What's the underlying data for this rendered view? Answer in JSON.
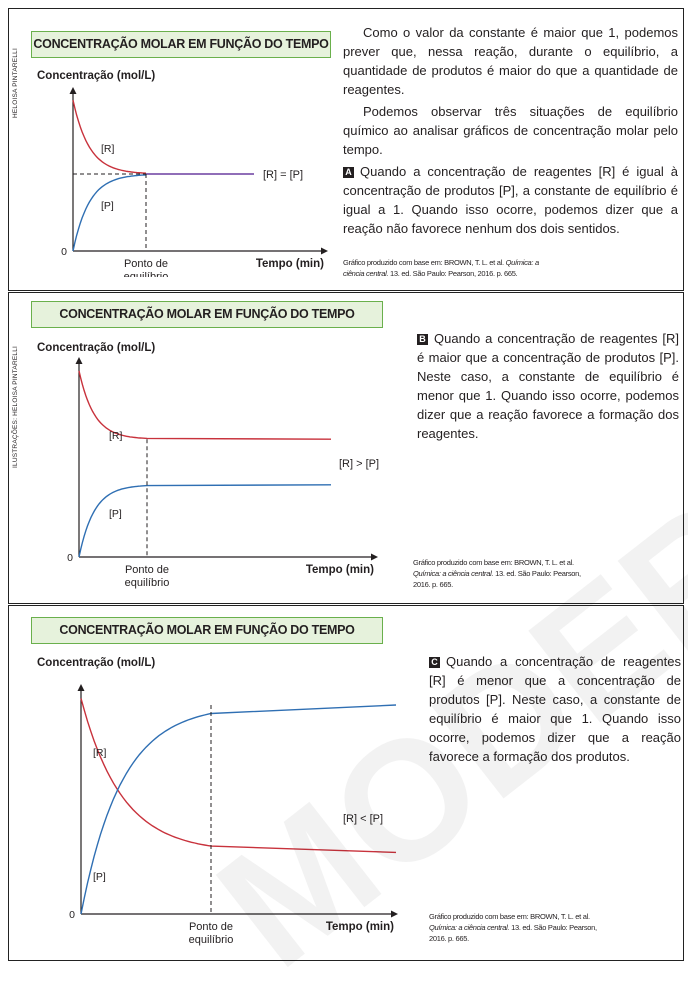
{
  "credits": {
    "first": "HELOISA PINTARELLI",
    "second": "ILUSTRAÇÕES: HELOISA PINTARELLI"
  },
  "watermark": "MODERNA",
  "chart_data": [
    {
      "type": "line",
      "title": "CONCENTRAÇÃO MOLAR EM FUNÇÃO DO TEMPO",
      "ylabel": "Concentração (mol/L)",
      "xlabel": "Tempo (min)",
      "origin_label": "0",
      "equilibrium_label": [
        "Ponto de",
        "equilíbrio"
      ],
      "annotation": "[R] = [P]",
      "series": [
        {
          "name": "[R]",
          "color": "#c8323c",
          "shape": "decay",
          "equilibrium_level": 0.5
        },
        {
          "name": "[P]",
          "color": "#2f6fb3",
          "shape": "growth",
          "equilibrium_level": 0.5
        }
      ]
    },
    {
      "type": "line",
      "title": "CONCENTRAÇÃO MOLAR EM FUNÇÃO DO TEMPO",
      "ylabel": "Concentração (mol/L)",
      "xlabel": "Tempo (min)",
      "origin_label": "0",
      "equilibrium_label": [
        "Ponto de",
        "equilíbrio"
      ],
      "annotation": "[R] > [P]",
      "series": [
        {
          "name": "[R]",
          "color": "#c8323c",
          "shape": "decay",
          "equilibrium_level": 0.62
        },
        {
          "name": "[P]",
          "color": "#2f6fb3",
          "shape": "growth",
          "equilibrium_level": 0.38
        }
      ]
    },
    {
      "type": "line",
      "title": "CONCENTRAÇÃO MOLAR EM FUNÇÃO DO TEMPO",
      "ylabel": "Concentração (mol/L)",
      "xlabel": "Tempo (min)",
      "origin_label": "0",
      "equilibrium_label": [
        "Ponto de",
        "equilíbrio"
      ],
      "annotation": "[R] < [P]",
      "series": [
        {
          "name": "[R]",
          "color": "#c8323c",
          "shape": "decay",
          "equilibrium_level": 0.28
        },
        {
          "name": "[P]",
          "color": "#2f6fb3",
          "shape": "growth",
          "equilibrium_level": 0.95
        }
      ]
    }
  ],
  "text1": {
    "p1": "Como o valor da constante é maior que 1, podemos prever que, nessa reação, durante o equilíbrio, a quantidade de produtos é maior do que a quantidade de reagentes.",
    "p2": "Podemos observar três situações de equilíbrio químico ao analisar gráficos de concentração molar pelo tempo.",
    "badge": "A",
    "item": "Quando a concentração de reagentes [R] é igual à concentração de produtos [P], a constante de equilíbrio é igual a 1. Quando isso ocorre, podemos dizer que a reação não favorece nenhum dos dois sentidos."
  },
  "text2": {
    "badge": "B",
    "item": "Quando a concentração de reagentes [R] é maior que a concentração de produtos [P]. Neste caso, a constante de equilíbrio é menor que 1. Quando isso ocorre, podemos dizer que a reação favorece a formação dos reagentes."
  },
  "text3": {
    "badge": "C",
    "item": "Quando a concentração de reagentes [R] é menor que a concentração de produtos [P]. Neste caso, a constante de equilíbrio é maior que 1. Quando isso ocorre, podemos dizer que a reação favorece a formação dos produtos."
  },
  "sources": {
    "s1": {
      "pre": "Gráfico produzido com base em: BROWN, T. L. et al.",
      "ital": "Química: a ciência central.",
      "post": "13. ed. São Paulo: Pearson, 2016. p. 665."
    },
    "s2": {
      "pre": "Gráfico produzido com base em: BROWN, T. L. et al.",
      "ital": "Química: a ciência central.",
      "post": "13. ed. São Paulo: Pearson, 2016. p. 665."
    },
    "s3": {
      "pre": "Gráfico produzido com base em: BROWN, T. L. et al.",
      "ital": "Química: a ciência central.",
      "post": "13. ed. São Paulo: Pearson, 2016. p. 665."
    }
  }
}
